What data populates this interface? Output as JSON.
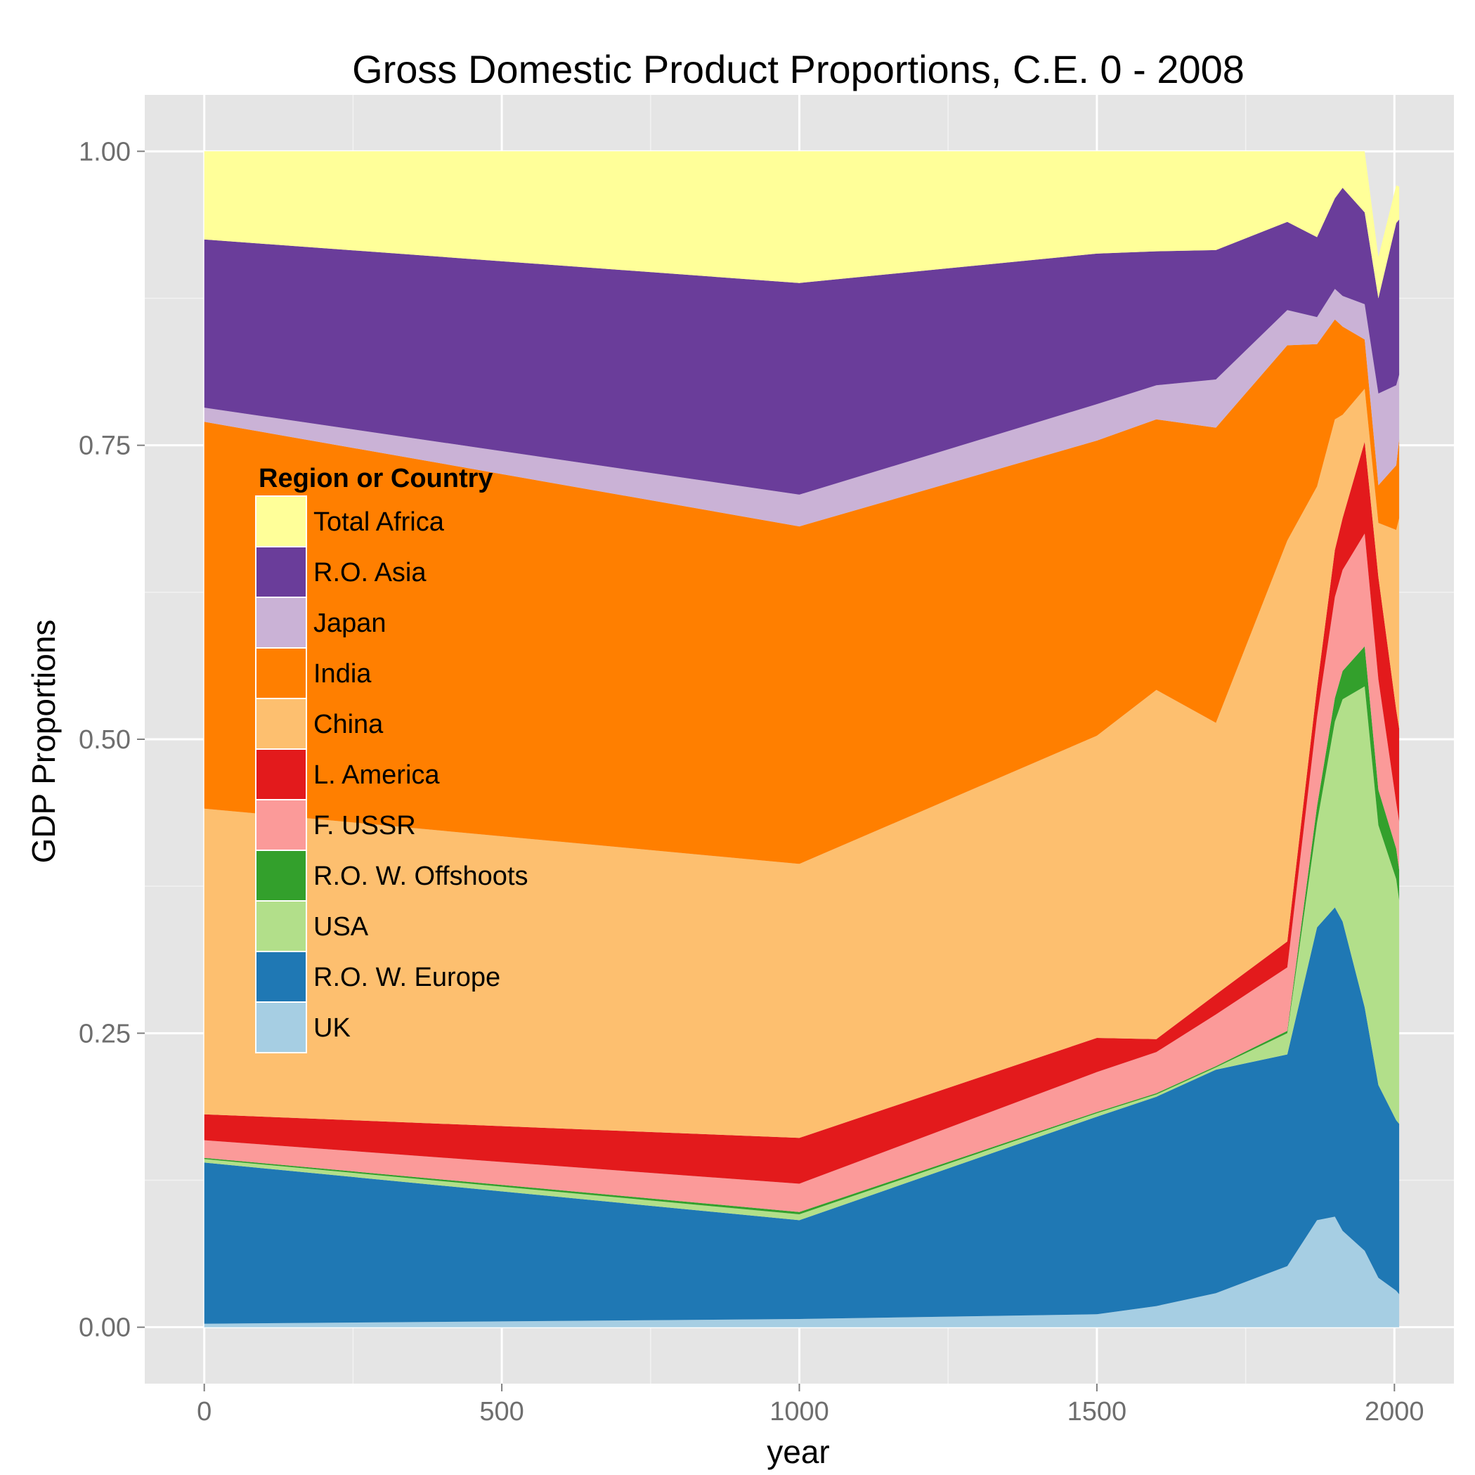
{
  "chart_data": {
    "type": "area",
    "stacked": true,
    "title": "Gross Domestic Product Proportions, C.E. 0 - 2008",
    "xlabel": "year",
    "ylabel": "GDP Proportions",
    "xlim": [
      -100,
      2100
    ],
    "ylim": [
      -0.048,
      1.048
    ],
    "x_ticks": [
      0,
      500,
      1000,
      1500,
      2000
    ],
    "x_tick_labels": [
      "0",
      "500",
      "1000",
      "1500",
      "2000"
    ],
    "y_ticks": [
      0,
      0.25,
      0.5,
      0.75,
      1
    ],
    "y_tick_labels": [
      "0.00",
      "0.25",
      "0.50",
      "0.75",
      "1.00"
    ],
    "grid": true,
    "background": "#e5e5e5",
    "legend": {
      "title": "Region or Country",
      "position": "inside-left"
    },
    "x": [
      0,
      1000,
      1500,
      1600,
      1700,
      1820,
      1870,
      1900,
      1913,
      1950,
      1973,
      2003,
      2008
    ],
    "series": [
      {
        "name": "UK",
        "color": "#a6cee3",
        "values": [
          0.003,
          0.007,
          0.011,
          0.018,
          0.029,
          0.052,
          0.091,
          0.094,
          0.082,
          0.065,
          0.042,
          0.031,
          0.028
        ]
      },
      {
        "name": "R.O. W. Europe",
        "color": "#1f78b4",
        "values": [
          0.137,
          0.084,
          0.168,
          0.178,
          0.19,
          0.18,
          0.249,
          0.263,
          0.263,
          0.207,
          0.164,
          0.145,
          0.145
        ]
      },
      {
        "name": "USA",
        "color": "#b2df8a",
        "values": [
          0.003,
          0.005,
          0.003,
          0.002,
          0.002,
          0.018,
          0.089,
          0.158,
          0.189,
          0.273,
          0.221,
          0.205,
          0.19
        ]
      },
      {
        "name": "R.O. W. Offshoots",
        "color": "#33a02c",
        "values": [
          0.001,
          0.002,
          0.001,
          0.001,
          0.001,
          0.002,
          0.014,
          0.02,
          0.024,
          0.034,
          0.03,
          0.026,
          0.026
        ]
      },
      {
        "name": "F. USSR",
        "color": "#fb9a99",
        "values": [
          0.015,
          0.024,
          0.034,
          0.035,
          0.044,
          0.054,
          0.076,
          0.086,
          0.086,
          0.096,
          0.094,
          0.039,
          0.041
        ]
      },
      {
        "name": "L. America",
        "color": "#e31a1c",
        "values": [
          0.022,
          0.039,
          0.029,
          0.011,
          0.017,
          0.022,
          0.025,
          0.04,
          0.044,
          0.078,
          0.087,
          0.079,
          0.079
        ]
      },
      {
        "name": "China",
        "color": "#fdbf6f",
        "values": [
          0.26,
          0.233,
          0.257,
          0.297,
          0.231,
          0.341,
          0.171,
          0.111,
          0.088,
          0.045,
          0.046,
          0.153,
          0.179
        ]
      },
      {
        "name": "India",
        "color": "#ff7f00",
        "values": [
          0.329,
          0.287,
          0.251,
          0.23,
          0.251,
          0.166,
          0.121,
          0.085,
          0.075,
          0.042,
          0.032,
          0.055,
          0.067
        ]
      },
      {
        "name": "Japan",
        "color": "#cab2d6",
        "values": [
          0.012,
          0.027,
          0.031,
          0.029,
          0.041,
          0.03,
          0.023,
          0.026,
          0.026,
          0.03,
          0.078,
          0.068,
          0.055
        ]
      },
      {
        "name": "R.O. Asia",
        "color": "#6a3d9a",
        "values": [
          0.143,
          0.18,
          0.128,
          0.114,
          0.11,
          0.075,
          0.068,
          0.077,
          0.092,
          0.078,
          0.081,
          0.138,
          0.132
        ]
      },
      {
        "name": "Total Africa",
        "color": "#ffff99",
        "values": [
          0.075,
          0.112,
          0.087,
          0.085,
          0.084,
          0.06,
          0.073,
          0.04,
          0.031,
          0.052,
          0.035,
          0.032,
          0.028
        ]
      }
    ]
  }
}
